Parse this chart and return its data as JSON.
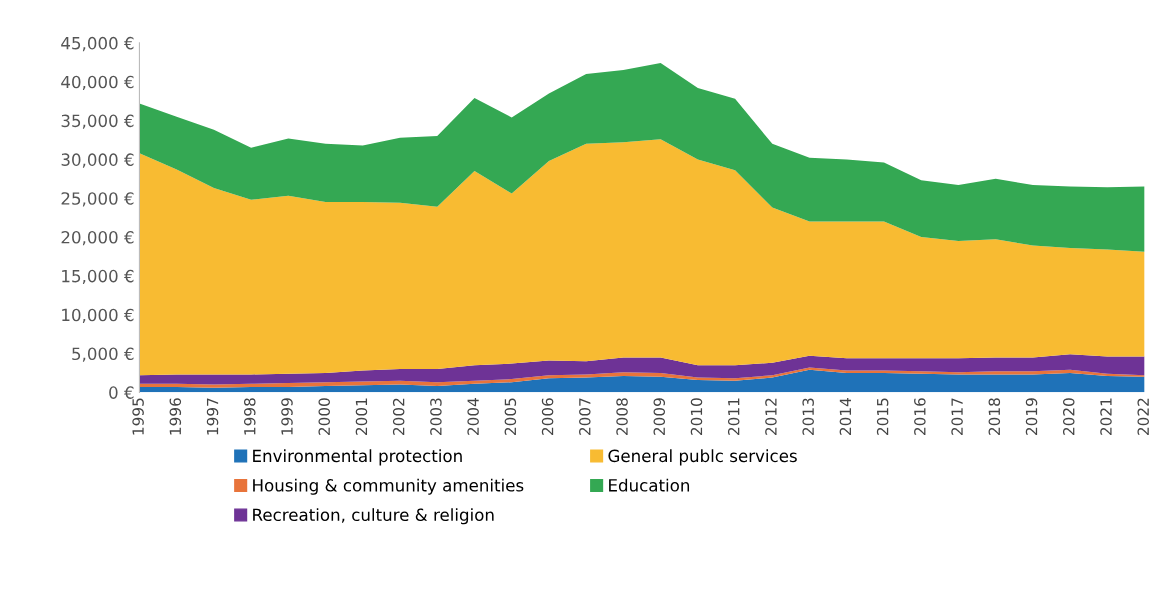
{
  "chart_data": {
    "type": "area",
    "stacked": true,
    "legend": "bottom",
    "grid": false,
    "categories": [
      "1995",
      "1996",
      "1997",
      "1998",
      "1999",
      "2000",
      "2001",
      "2002",
      "2003",
      "2004",
      "2005",
      "2006",
      "2007",
      "2008",
      "2009",
      "2010",
      "2011",
      "2012",
      "2013",
      "2014",
      "2015",
      "2016",
      "2017",
      "2018",
      "2019",
      "2020",
      "2021",
      "2022"
    ],
    "ylim": [
      0,
      45000
    ],
    "yticks": [
      {
        "value": 0,
        "label": "0 €"
      },
      {
        "value": 5000,
        "label": "5,000 €"
      },
      {
        "value": 10000,
        "label": "10,000 €"
      },
      {
        "value": 15000,
        "label": "15,000 €"
      },
      {
        "value": 20000,
        "label": "20,000 €"
      },
      {
        "value": 25000,
        "label": "25,000 €"
      },
      {
        "value": 30000,
        "label": "30,000 €"
      },
      {
        "value": 35000,
        "label": "35,000 €"
      },
      {
        "value": 40000,
        "label": "40,000 €"
      },
      {
        "value": 45000,
        "label": "45,000 €"
      }
    ],
    "series": [
      {
        "name": "Environmental protection",
        "color": "#1f72b8",
        "values": [
          700,
          700,
          600,
          700,
          700,
          800,
          900,
          1000,
          800,
          1100,
          1300,
          1800,
          1900,
          2100,
          2000,
          1600,
          1500,
          1900,
          2900,
          2500,
          2500,
          2400,
          2300,
          2300,
          2300,
          2500,
          2100,
          2000
        ]
      },
      {
        "name": "Housing & community amenities",
        "color": "#e8743b",
        "values": [
          400,
          400,
          400,
          400,
          500,
          500,
          500,
          500,
          500,
          400,
          400,
          400,
          400,
          500,
          500,
          300,
          300,
          300,
          300,
          300,
          300,
          300,
          300,
          400,
          400,
          400,
          300,
          200
        ]
      },
      {
        "name": "Recreation, culture & religion",
        "color": "#6e3396",
        "values": [
          1100,
          1200,
          1300,
          1200,
          1200,
          1200,
          1400,
          1500,
          1700,
          2000,
          2000,
          1900,
          1700,
          1900,
          2000,
          1600,
          1700,
          1600,
          1500,
          1600,
          1600,
          1700,
          1800,
          1800,
          1800,
          2000,
          2200,
          2400
        ]
      },
      {
        "name": "General publc services",
        "color": "#f8bb32",
        "values": [
          28600,
          26400,
          24000,
          22500,
          22900,
          22000,
          21700,
          21400,
          20900,
          25000,
          21900,
          25700,
          28000,
          27700,
          28100,
          26500,
          25100,
          20000,
          17300,
          17600,
          17600,
          15600,
          15100,
          15200,
          14400,
          13700,
          13800,
          13500
        ]
      },
      {
        "name": "Education",
        "color": "#34a853",
        "values": [
          6400,
          6800,
          7500,
          6700,
          7400,
          7500,
          7300,
          8400,
          9100,
          9400,
          9800,
          8700,
          9000,
          9300,
          9800,
          9200,
          9200,
          8200,
          8200,
          8000,
          7600,
          7300,
          7200,
          7800,
          7800,
          7900,
          8000,
          8400
        ]
      }
    ]
  }
}
